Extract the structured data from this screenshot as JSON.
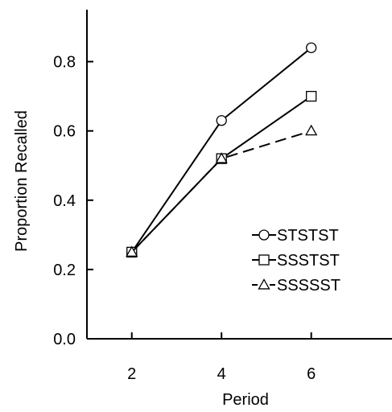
{
  "chart_data": {
    "type": "line",
    "title": "",
    "xlabel": "Period",
    "ylabel": "Proportion Recalled",
    "xlim": [
      1,
      7.8
    ],
    "ylim": [
      0.0,
      0.95
    ],
    "x_ticks": [
      2,
      4,
      6
    ],
    "x_tick_labels": [
      "2",
      "4",
      "6"
    ],
    "y_ticks": [
      0.0,
      0.2,
      0.4,
      0.6,
      0.8
    ],
    "y_tick_labels": [
      "0.0",
      "0.2",
      "0.4",
      "0.6",
      "0.8"
    ],
    "grid": false,
    "legend_position": "lower-right",
    "x": [
      2,
      4,
      6
    ],
    "series": [
      {
        "name": "STSTST",
        "marker": "circle",
        "line_style": "solid",
        "color": "#000000",
        "values": [
          0.25,
          0.63,
          0.84
        ]
      },
      {
        "name": "SSSTST",
        "marker": "square",
        "line_style": "solid",
        "color": "#000000",
        "values": [
          0.25,
          0.52,
          0.7
        ]
      },
      {
        "name": "SSSSST",
        "marker": "triangle",
        "line_style": "dashed",
        "color": "#000000",
        "values": [
          0.25,
          0.52,
          0.6
        ]
      }
    ]
  }
}
